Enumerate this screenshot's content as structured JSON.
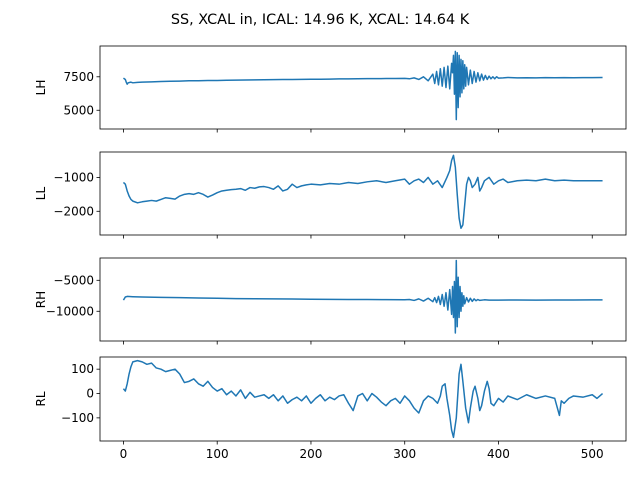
{
  "title": "SS, XCAL in, ICAL: 14.96 K, XCAL: 14.64 K",
  "chart_data": [
    {
      "type": "line",
      "ylabel": "LH",
      "xlim": [
        -25,
        536
      ],
      "ylim": [
        3600,
        9800
      ],
      "yticks": [
        5000,
        7500
      ],
      "yticklabels": [
        "5000",
        "7500"
      ],
      "xticks": [
        0,
        100,
        200,
        300,
        400,
        500
      ],
      "xticklabels": [],
      "color": "#1f77b4",
      "series": [
        {
          "x": [
            0,
            2,
            3,
            4,
            5,
            8,
            10,
            15,
            20,
            30,
            40,
            50,
            60,
            70,
            80,
            90,
            100,
            110,
            120,
            130,
            140,
            150,
            160,
            170,
            180,
            190,
            200,
            210,
            220,
            230,
            240,
            250,
            260,
            270,
            280,
            290,
            300,
            305,
            310,
            315,
            320,
            325,
            330,
            332,
            334,
            336,
            338,
            340,
            342,
            344,
            346,
            348,
            350,
            351,
            352,
            353,
            354,
            355,
            356,
            357,
            358,
            359,
            360,
            361,
            362,
            363,
            364,
            365,
            366,
            368,
            370,
            372,
            374,
            376,
            378,
            380,
            382,
            384,
            386,
            388,
            390,
            392,
            394,
            396,
            398,
            400,
            405,
            410,
            420,
            430,
            440,
            450,
            460,
            470,
            480,
            490,
            500,
            511
          ],
          "values": [
            7400,
            7300,
            7100,
            6950,
            7050,
            7100,
            7050,
            7080,
            7100,
            7120,
            7150,
            7170,
            7180,
            7200,
            7200,
            7220,
            7220,
            7240,
            7250,
            7260,
            7270,
            7280,
            7290,
            7300,
            7300,
            7310,
            7320,
            7320,
            7330,
            7340,
            7340,
            7350,
            7360,
            7360,
            7370,
            7370,
            7380,
            7350,
            7420,
            7300,
            7500,
            7200,
            7700,
            7000,
            7900,
            6900,
            8100,
            6800,
            8200,
            6700,
            8300,
            6600,
            8500,
            7800,
            9100,
            6200,
            9400,
            4300,
            9300,
            5200,
            9100,
            6000,
            8800,
            6300,
            8700,
            6600,
            8400,
            6800,
            8200,
            6900,
            8000,
            7000,
            7900,
            7100,
            7800,
            7200,
            7700,
            7250,
            7600,
            7300,
            7550,
            7350,
            7500,
            7350,
            7500,
            7400,
            7420,
            7450,
            7420,
            7430,
            7420,
            7440,
            7430,
            7440,
            7430,
            7440,
            7440,
            7450
          ]
        }
      ]
    },
    {
      "type": "line",
      "ylabel": "LL",
      "xlim": [
        -25,
        536
      ],
      "ylim": [
        -2700,
        -250
      ],
      "yticks": [
        -2000,
        -1000
      ],
      "yticklabels": [
        "−2000",
        "−1000"
      ],
      "xticks": [
        0,
        100,
        200,
        300,
        400,
        500
      ],
      "xticklabels": [],
      "color": "#1f77b4",
      "series": [
        {
          "x": [
            0,
            2,
            4,
            6,
            8,
            10,
            15,
            20,
            25,
            30,
            35,
            40,
            45,
            50,
            55,
            60,
            65,
            70,
            75,
            80,
            85,
            90,
            95,
            100,
            105,
            110,
            115,
            120,
            125,
            130,
            135,
            140,
            145,
            150,
            155,
            160,
            165,
            170,
            175,
            180,
            185,
            190,
            195,
            200,
            210,
            220,
            230,
            240,
            250,
            260,
            270,
            280,
            290,
            300,
            305,
            310,
            315,
            320,
            325,
            330,
            335,
            340,
            345,
            348,
            350,
            352,
            354,
            356,
            358,
            360,
            362,
            364,
            366,
            368,
            370,
            372,
            375,
            378,
            380,
            382,
            385,
            390,
            395,
            400,
            405,
            410,
            420,
            430,
            440,
            450,
            460,
            470,
            480,
            490,
            500,
            511
          ],
          "values": [
            -1150,
            -1200,
            -1400,
            -1550,
            -1650,
            -1700,
            -1750,
            -1720,
            -1700,
            -1680,
            -1700,
            -1650,
            -1600,
            -1620,
            -1640,
            -1550,
            -1500,
            -1480,
            -1500,
            -1450,
            -1500,
            -1580,
            -1520,
            -1450,
            -1400,
            -1380,
            -1360,
            -1350,
            -1330,
            -1380,
            -1300,
            -1320,
            -1280,
            -1270,
            -1300,
            -1350,
            -1250,
            -1400,
            -1350,
            -1200,
            -1300,
            -1250,
            -1220,
            -1200,
            -1220,
            -1180,
            -1200,
            -1150,
            -1180,
            -1130,
            -1100,
            -1150,
            -1100,
            -1050,
            -1200,
            -1100,
            -1050,
            -1150,
            -1000,
            -1200,
            -1100,
            -1300,
            -1000,
            -800,
            -500,
            -350,
            -700,
            -1500,
            -2200,
            -2500,
            -2400,
            -1800,
            -1200,
            -1000,
            -1100,
            -1300,
            -1200,
            -1000,
            -1400,
            -1300,
            -1100,
            -1000,
            -1200,
            -1100,
            -1050,
            -1150,
            -1100,
            -1080,
            -1100,
            -1050,
            -1100,
            -1080,
            -1100,
            -1100,
            -1100,
            -1100
          ]
        }
      ]
    },
    {
      "type": "line",
      "ylabel": "RH",
      "xlim": [
        -25,
        536
      ],
      "ylim": [
        -14800,
        -1400
      ],
      "yticks": [
        -10000,
        -5000
      ],
      "yticklabels": [
        "−10000",
        "−5000"
      ],
      "xticks": [
        0,
        100,
        200,
        300,
        400,
        500
      ],
      "xticklabels": [],
      "color": "#1f77b4",
      "series": [
        {
          "x": [
            0,
            2,
            4,
            10,
            20,
            40,
            60,
            80,
            100,
            120,
            140,
            160,
            180,
            200,
            220,
            240,
            260,
            280,
            300,
            305,
            310,
            315,
            320,
            325,
            330,
            332,
            334,
            336,
            338,
            340,
            342,
            344,
            346,
            348,
            350,
            351,
            352,
            353,
            354,
            355,
            356,
            357,
            358,
            359,
            360,
            361,
            362,
            363,
            364,
            366,
            368,
            370,
            372,
            374,
            376,
            378,
            380,
            385,
            390,
            400,
            420,
            440,
            460,
            480,
            500,
            511
          ],
          "values": [
            -8200,
            -7700,
            -7600,
            -7650,
            -7700,
            -7750,
            -7800,
            -7850,
            -7900,
            -7950,
            -7980,
            -8000,
            -8020,
            -8050,
            -8080,
            -8100,
            -8100,
            -8120,
            -8150,
            -8100,
            -8250,
            -8000,
            -8350,
            -7900,
            -8450,
            -7800,
            -8600,
            -7600,
            -8900,
            -7300,
            -9200,
            -7000,
            -9800,
            -6500,
            -10500,
            -6000,
            -11000,
            -5200,
            -13500,
            -1800,
            -12500,
            -4500,
            -11000,
            -6000,
            -10000,
            -7000,
            -9200,
            -7500,
            -8800,
            -7800,
            -8500,
            -7900,
            -8400,
            -8000,
            -8300,
            -8100,
            -8250,
            -8150,
            -8200,
            -8200,
            -8180,
            -8200,
            -8190,
            -8180,
            -8170,
            -8170
          ]
        }
      ]
    },
    {
      "type": "line",
      "ylabel": "RL",
      "xlim": [
        -25,
        536
      ],
      "ylim": [
        -195,
        150
      ],
      "yticks": [
        -100,
        0,
        100
      ],
      "yticklabels": [
        "−100",
        "0",
        "100"
      ],
      "xticks": [
        0,
        100,
        200,
        300,
        400,
        500
      ],
      "xticklabels": [
        "0",
        "100",
        "200",
        "300",
        "400",
        "500"
      ],
      "color": "#1f77b4",
      "series": [
        {
          "x": [
            0,
            2,
            4,
            6,
            8,
            10,
            15,
            20,
            25,
            30,
            35,
            40,
            45,
            50,
            55,
            60,
            65,
            70,
            75,
            80,
            85,
            90,
            95,
            100,
            105,
            110,
            115,
            120,
            125,
            130,
            135,
            140,
            145,
            150,
            155,
            160,
            165,
            170,
            175,
            180,
            185,
            190,
            195,
            200,
            205,
            210,
            215,
            220,
            225,
            230,
            235,
            240,
            245,
            250,
            255,
            260,
            265,
            270,
            275,
            280,
            285,
            290,
            295,
            300,
            305,
            310,
            315,
            320,
            325,
            330,
            335,
            338,
            340,
            343,
            345,
            348,
            350,
            352,
            355,
            358,
            360,
            362,
            365,
            368,
            370,
            373,
            375,
            378,
            380,
            382,
            385,
            388,
            390,
            392,
            395,
            400,
            405,
            410,
            420,
            430,
            440,
            450,
            460,
            465,
            467,
            470,
            475,
            480,
            490,
            500,
            505,
            511
          ],
          "values": [
            20,
            10,
            40,
            80,
            110,
            130,
            135,
            130,
            120,
            125,
            105,
            100,
            90,
            95,
            100,
            80,
            45,
            50,
            60,
            40,
            30,
            50,
            25,
            10,
            20,
            -5,
            10,
            -10,
            15,
            -20,
            5,
            -15,
            -10,
            -5,
            -20,
            -5,
            -30,
            -10,
            -40,
            -25,
            -15,
            -30,
            -10,
            -40,
            -20,
            -5,
            -30,
            -15,
            -25,
            -10,
            -5,
            -40,
            -70,
            -10,
            0,
            -30,
            0,
            -15,
            -35,
            -50,
            -30,
            -20,
            -40,
            -10,
            -30,
            -60,
            -80,
            -30,
            -10,
            -20,
            -40,
            -10,
            30,
            40,
            -20,
            -90,
            -150,
            -180,
            -100,
            80,
            120,
            50,
            -60,
            -120,
            -60,
            10,
            30,
            -20,
            -70,
            -50,
            10,
            50,
            20,
            -40,
            -50,
            -20,
            -35,
            -10,
            -25,
            -5,
            -20,
            -10,
            -20,
            -90,
            -30,
            -40,
            -20,
            -10,
            -15,
            -5,
            -20,
            0
          ]
        }
      ]
    }
  ]
}
